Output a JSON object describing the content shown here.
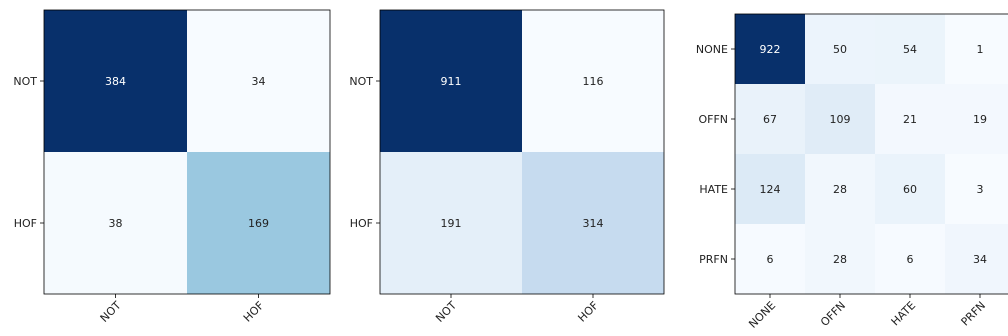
{
  "chart_data": [
    {
      "type": "heatmap",
      "colormap": "Blues",
      "rows": [
        "NOT",
        "HOF"
      ],
      "columns": [
        "NOT",
        "HOF"
      ],
      "values": [
        [
          384,
          34
        ],
        [
          38,
          169
        ]
      ]
    },
    {
      "type": "heatmap",
      "colormap": "Blues",
      "rows": [
        "NOT",
        "HOF"
      ],
      "columns": [
        "NOT",
        "HOF"
      ],
      "values": [
        [
          911,
          116
        ],
        [
          191,
          314
        ]
      ]
    },
    {
      "type": "heatmap",
      "colormap": "Blues",
      "rows": [
        "NONE",
        "OFFN",
        "HATE",
        "PRFN"
      ],
      "columns": [
        "NONE",
        "OFFN",
        "HATE",
        "PRFN"
      ],
      "values": [
        [
          922,
          50,
          54,
          1
        ],
        [
          67,
          109,
          21,
          19
        ],
        [
          124,
          28,
          60,
          3
        ],
        [
          6,
          28,
          6,
          34
        ]
      ]
    }
  ]
}
